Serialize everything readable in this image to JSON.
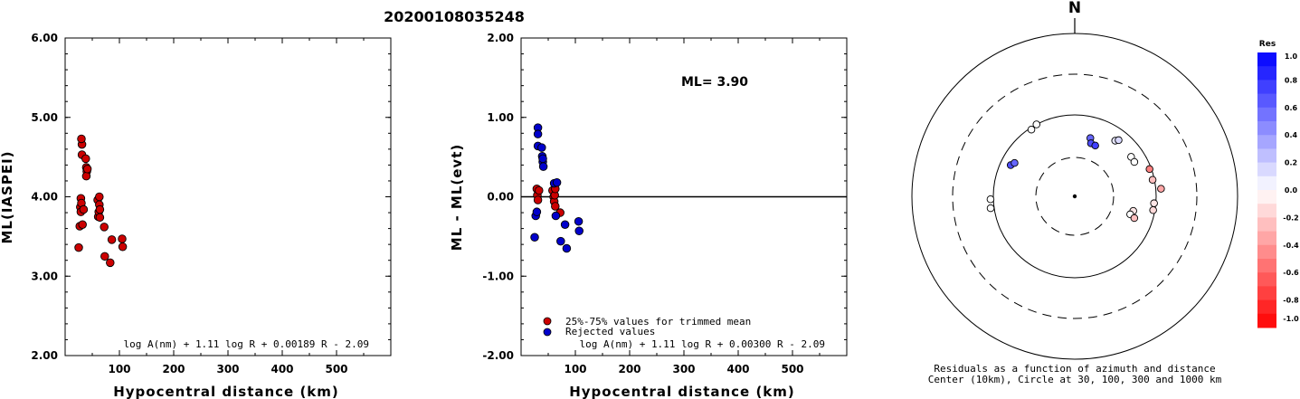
{
  "title": "20200108035248",
  "chart_data": [
    {
      "type": "scatter",
      "xlabel": "Hypocentral distance (km)",
      "ylabel": "ML(IASPEI)",
      "xlim": [
        0,
        600
      ],
      "ylim": [
        2.0,
        6.0
      ],
      "x_ticks": [
        "100",
        "200",
        "300",
        "400",
        "500"
      ],
      "y_ticks": [
        "2.00",
        "3.00",
        "4.00",
        "5.00",
        "6.00"
      ],
      "formula": "log A(nm) + 1.11 log R + 0.00189 R - 2.09",
      "marker_color": "#cc0000",
      "points": [
        [
          25,
          3.36
        ],
        [
          27,
          3.63
        ],
        [
          28,
          3.87
        ],
        [
          29,
          3.98
        ],
        [
          29,
          3.81
        ],
        [
          30,
          3.92
        ],
        [
          31,
          4.66
        ],
        [
          30,
          4.73
        ],
        [
          31,
          4.53
        ],
        [
          32,
          3.65
        ],
        [
          34,
          3.84
        ],
        [
          38,
          4.48
        ],
        [
          39,
          4.37
        ],
        [
          40,
          4.32
        ],
        [
          39,
          4.26
        ],
        [
          41,
          4.35
        ],
        [
          60,
          3.96
        ],
        [
          61,
          3.75
        ],
        [
          62,
          3.81
        ],
        [
          63,
          3.9
        ],
        [
          63,
          4.0
        ],
        [
          64,
          3.84
        ],
        [
          64,
          3.74
        ],
        [
          72,
          3.62
        ],
        [
          73,
          3.25
        ],
        [
          83,
          3.17
        ],
        [
          86,
          3.46
        ],
        [
          105,
          3.47
        ],
        [
          106,
          3.37
        ]
      ]
    },
    {
      "type": "scatter",
      "xlabel": "Hypocentral distance (km)",
      "ylabel": "ML - ML(evt)",
      "xlim": [
        0,
        600
      ],
      "ylim": [
        -2.0,
        2.0
      ],
      "x_ticks": [
        "100",
        "200",
        "300",
        "400",
        "500"
      ],
      "y_ticks": [
        "-2.00",
        "-1.00",
        "0.00",
        "1.00",
        "2.00"
      ],
      "annotation": "ML= 3.90",
      "formula": "log A(nm) + 1.11 log R + 0.00300 R - 2.09",
      "legend": [
        {
          "label": "25%-75% values for trimmed mean",
          "color": "#cc0000"
        },
        {
          "label": "Rejected values",
          "color": "#0000cc"
        }
      ],
      "series": [
        {
          "name": "25%-75% values for trimmed mean",
          "color": "#cc0000",
          "points": [
            [
              29,
              0.1
            ],
            [
              30,
              0.02
            ],
            [
              31,
              -0.04
            ],
            [
              33,
              0.08
            ],
            [
              58,
              0.08
            ],
            [
              60,
              0.0
            ],
            [
              61,
              -0.06
            ],
            [
              62,
              0.02
            ],
            [
              63,
              0.1
            ],
            [
              63,
              -0.12
            ],
            [
              72,
              -0.2
            ]
          ]
        },
        {
          "name": "Rejected values",
          "color": "#0000cc",
          "points": [
            [
              25,
              -0.51
            ],
            [
              27,
              -0.24
            ],
            [
              29,
              -0.19
            ],
            [
              31,
              0.87
            ],
            [
              31,
              0.79
            ],
            [
              31,
              0.64
            ],
            [
              38,
              0.62
            ],
            [
              39,
              0.51
            ],
            [
              40,
              0.44
            ],
            [
              41,
              0.38
            ],
            [
              40,
              0.48
            ],
            [
              61,
              0.17
            ],
            [
              64,
              -0.24
            ],
            [
              66,
              0.18
            ],
            [
              73,
              -0.56
            ],
            [
              81,
              -0.35
            ],
            [
              84,
              -0.65
            ],
            [
              106,
              -0.31
            ],
            [
              107,
              -0.43
            ]
          ]
        }
      ]
    },
    {
      "type": "scatter",
      "subtype": "polar",
      "north_label": "N",
      "caption_line1": "Residuals as a function of azimuth and distance",
      "caption_line2": "Center (10km), Circle at 30, 100, 300 and 1000 km",
      "circles_km": [
        10,
        30,
        100,
        300,
        1000
      ],
      "colorbar_title": "Res",
      "colorbar_ticks": [
        "1.0",
        "0.8",
        "0.6",
        "0.4",
        "0.2",
        "0.0",
        "-0.2",
        "-0.4",
        "-0.6",
        "-0.8",
        "-1.0"
      ],
      "stations": [
        {
          "azimuth": 296,
          "distance_km": 75,
          "residual": 0.7
        },
        {
          "azimuth": 299,
          "distance_km": 70,
          "residual": 0.6
        },
        {
          "azimuth": 262,
          "distance_km": 110,
          "residual": 0.0
        },
        {
          "azimuth": 268,
          "distance_km": 108,
          "residual": 0.0
        },
        {
          "azimuth": 327,
          "distance_km": 95,
          "residual": 0.0
        },
        {
          "azimuth": 332,
          "distance_km": 100,
          "residual": 0.0
        },
        {
          "azimuth": 15,
          "distance_km": 55,
          "residual": 0.6
        },
        {
          "azimuth": 17,
          "distance_km": 48,
          "residual": 0.7
        },
        {
          "azimuth": 22,
          "distance_km": 47,
          "residual": 0.75
        },
        {
          "azimuth": 36,
          "distance_km": 70,
          "residual": 0.1
        },
        {
          "azimuth": 38,
          "distance_km": 75,
          "residual": 0.15
        },
        {
          "azimuth": 55,
          "distance_km": 70,
          "residual": 0.0
        },
        {
          "azimuth": 60,
          "distance_km": 70,
          "residual": 0.0
        },
        {
          "azimuth": 70,
          "distance_km": 95,
          "residual": -0.5
        },
        {
          "azimuth": 78,
          "distance_km": 95,
          "residual": -0.25
        },
        {
          "azimuth": 95,
          "distance_km": 95,
          "residual": -0.1
        },
        {
          "azimuth": 100,
          "distance_km": 95,
          "residual": -0.15
        },
        {
          "azimuth": 104,
          "distance_km": 55,
          "residual": -0.1
        },
        {
          "azimuth": 108,
          "distance_km": 52,
          "residual": 0.0
        },
        {
          "azimuth": 85,
          "distance_km": 115,
          "residual": -0.35
        },
        {
          "azimuth": 110,
          "distance_km": 60,
          "residual": -0.25
        }
      ]
    }
  ]
}
